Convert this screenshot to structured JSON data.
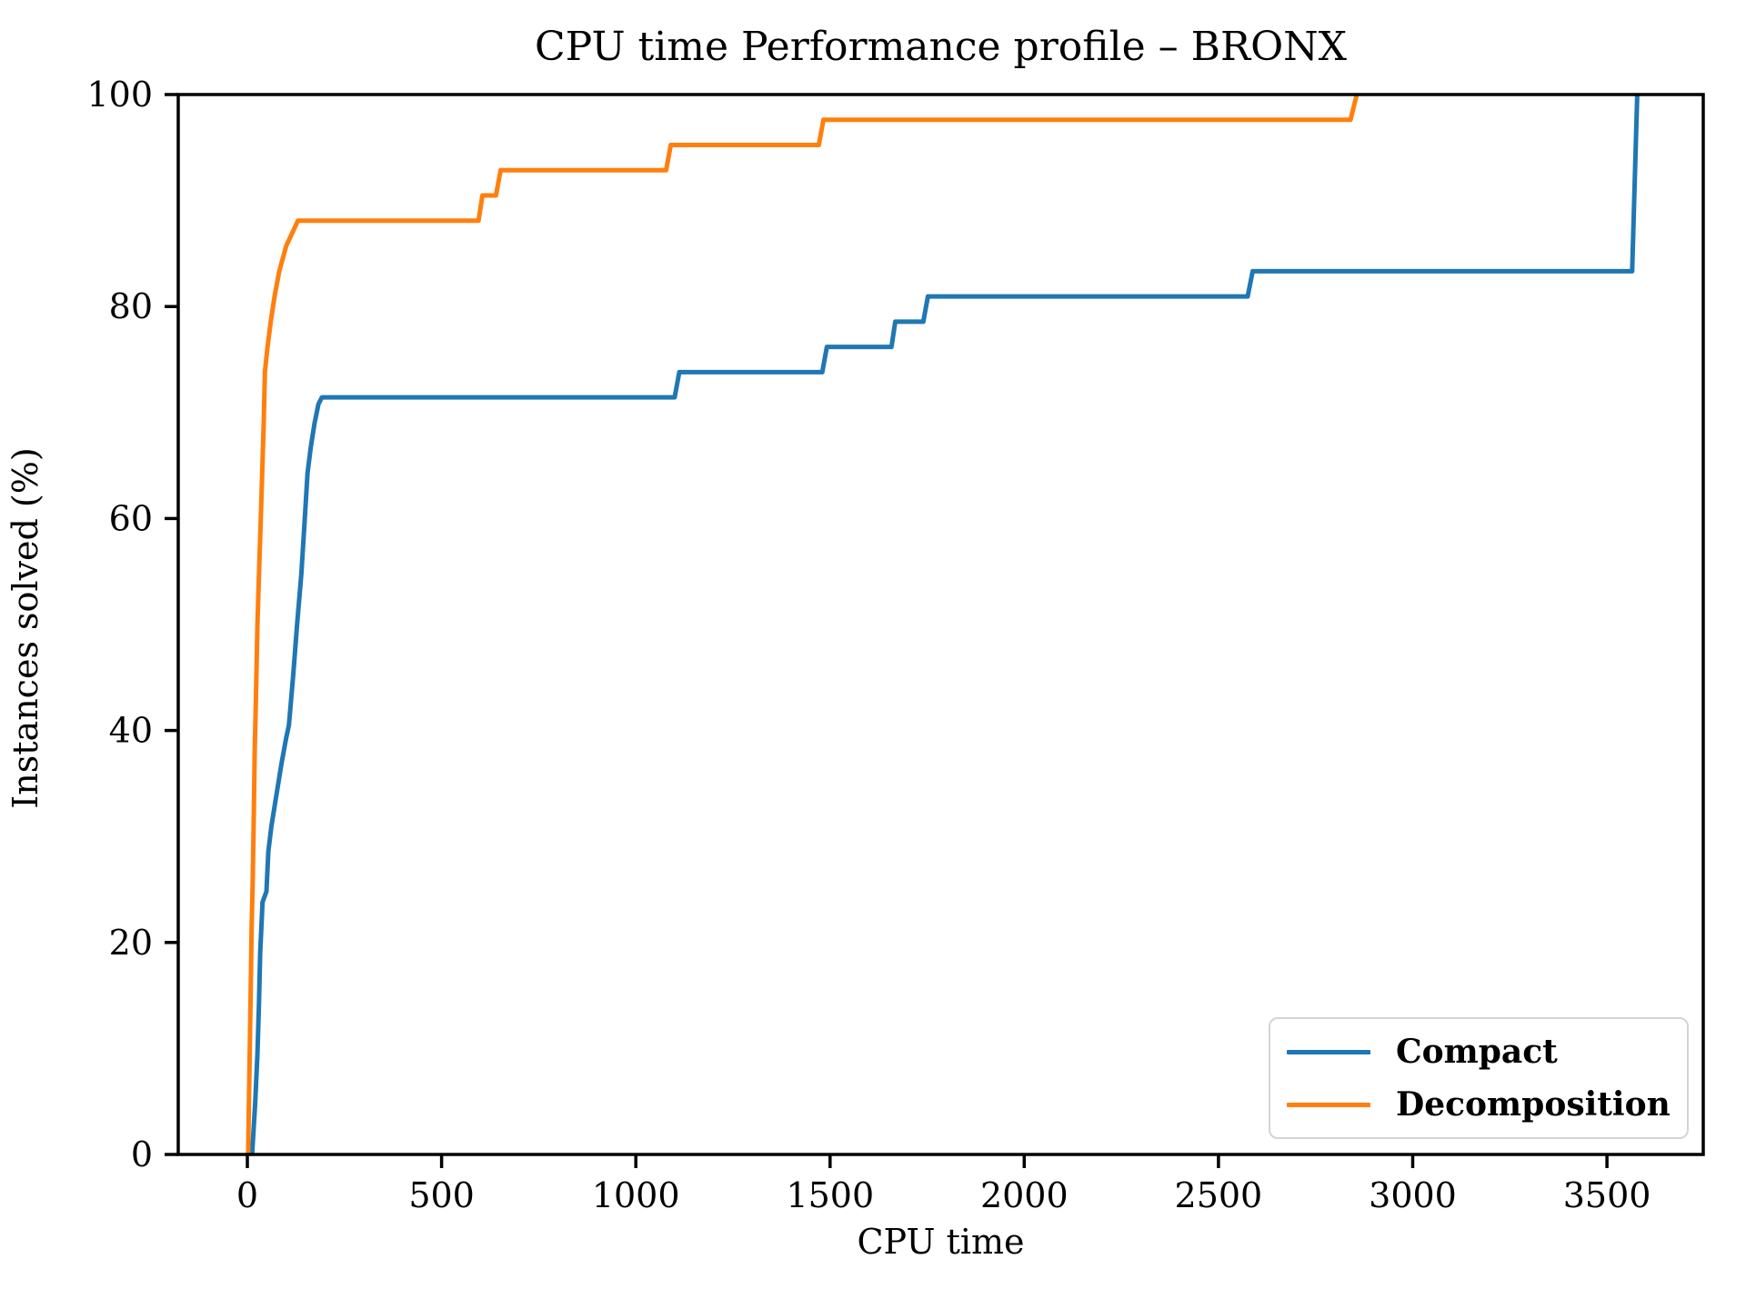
{
  "title": "CPU time Performance profile – BRONX",
  "chart_data": {
    "type": "line",
    "title": "CPU time Performance profile – BRONX",
    "xlabel": "CPU time",
    "ylabel": "Instances solved (%)",
    "xlim": [
      -178,
      3748
    ],
    "ylim": [
      0,
      100
    ],
    "x_ticks": [
      0,
      500,
      1000,
      1500,
      2000,
      2500,
      3000,
      3500
    ],
    "y_ticks": [
      0,
      20,
      40,
      60,
      80,
      100
    ],
    "grid": false,
    "legend_position": "lower right",
    "background": "#ffffff",
    "axis_color": "#000000",
    "series": [
      {
        "name": "Compact",
        "color": "#1f77b4",
        "points": [
          [
            12,
            0
          ],
          [
            20,
            4.8
          ],
          [
            26,
            9.5
          ],
          [
            30,
            14.3
          ],
          [
            33,
            19
          ],
          [
            36,
            21.4
          ],
          [
            39,
            23.81
          ],
          [
            49,
            24.8
          ],
          [
            54,
            28.6
          ],
          [
            62,
            31
          ],
          [
            72,
            33.3
          ],
          [
            88,
            36.9
          ],
          [
            100,
            39.3
          ],
          [
            107,
            40.5
          ],
          [
            118,
            45.2
          ],
          [
            128,
            50
          ],
          [
            139,
            54.8
          ],
          [
            147,
            59.5
          ],
          [
            155,
            64.3
          ],
          [
            163,
            66.7
          ],
          [
            173,
            69
          ],
          [
            183,
            70.8
          ],
          [
            192,
            71.43
          ],
          [
            1100,
            71.43
          ],
          [
            1112,
            73.81
          ],
          [
            1480,
            73.81
          ],
          [
            1492,
            76.19
          ],
          [
            1658,
            76.19
          ],
          [
            1668,
            78.57
          ],
          [
            1740,
            78.57
          ],
          [
            1752,
            80.95
          ],
          [
            2575,
            80.95
          ],
          [
            2588,
            83.33
          ],
          [
            3565,
            83.33
          ],
          [
            3578,
            100
          ]
        ]
      },
      {
        "name": "Decomposition",
        "color": "#ff7f0e",
        "points": [
          [
            2,
            0
          ],
          [
            4,
            4.8
          ],
          [
            6,
            9.5
          ],
          [
            9,
            16.7
          ],
          [
            11,
            21.4
          ],
          [
            14,
            26.2
          ],
          [
            16,
            31
          ],
          [
            19,
            38.1
          ],
          [
            22,
            42.9
          ],
          [
            26,
            50
          ],
          [
            30,
            54.8
          ],
          [
            34,
            59.5
          ],
          [
            38,
            64.3
          ],
          [
            42,
            69
          ],
          [
            45,
            73.81
          ],
          [
            52,
            76.19
          ],
          [
            60,
            78.57
          ],
          [
            70,
            80.95
          ],
          [
            82,
            83.33
          ],
          [
            100,
            85.71
          ],
          [
            130,
            88.1
          ],
          [
            595,
            88.1
          ],
          [
            605,
            90.48
          ],
          [
            640,
            90.48
          ],
          [
            652,
            92.86
          ],
          [
            1078,
            92.86
          ],
          [
            1090,
            95.24
          ],
          [
            1471,
            95.24
          ],
          [
            1483,
            97.62
          ],
          [
            2840,
            97.62
          ],
          [
            2856,
            100
          ]
        ]
      }
    ]
  },
  "legend": {
    "items": [
      {
        "label": "Compact",
        "color": "#1f77b4"
      },
      {
        "label": "Decomposition",
        "color": "#ff7f0e"
      }
    ]
  }
}
